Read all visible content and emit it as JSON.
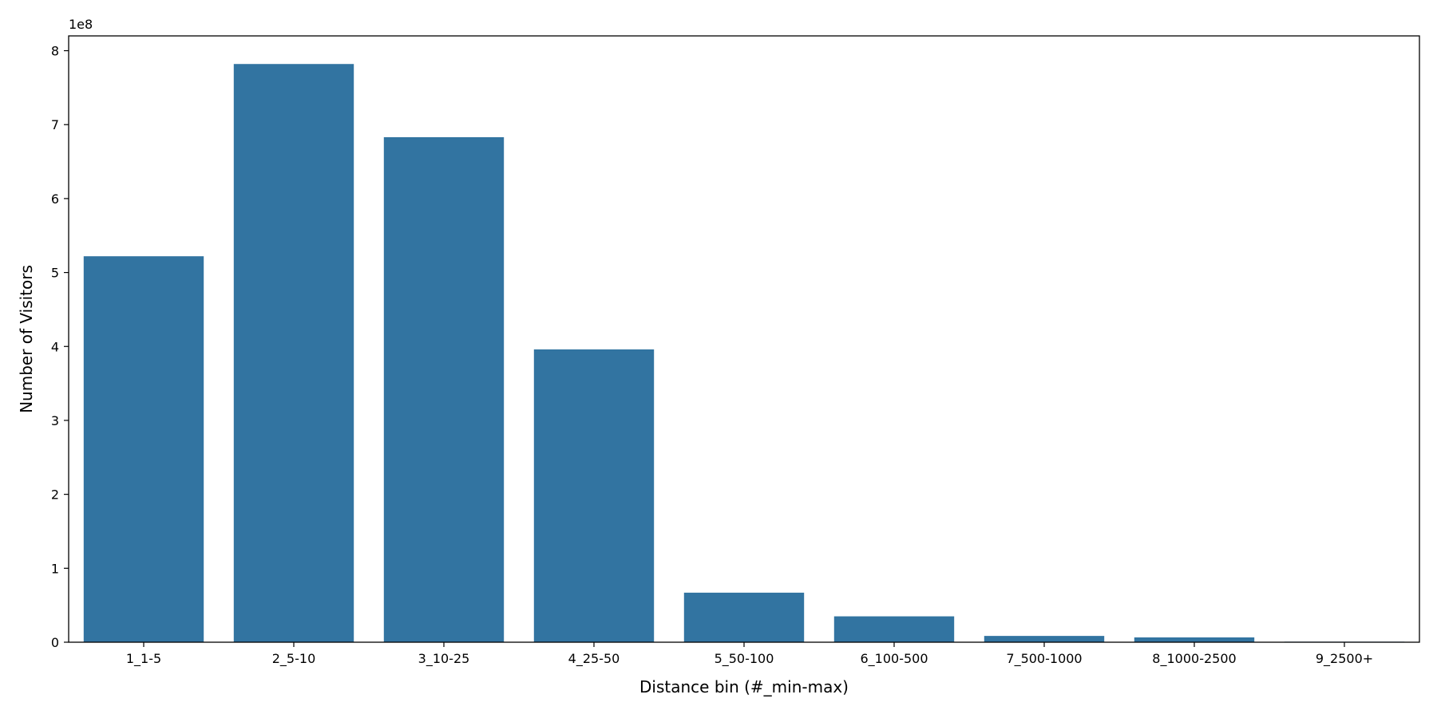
{
  "chart_data": {
    "type": "bar",
    "title": "",
    "xlabel": "Distance bin (#_min-max)",
    "ylabel": "Number of Visitors",
    "y_offset_label": "1e8",
    "y_scale": 100000000,
    "ylim": [
      0,
      820000000
    ],
    "yticks": [
      0,
      100000000,
      200000000,
      300000000,
      400000000,
      500000000,
      600000000,
      700000000,
      800000000
    ],
    "ytick_labels": [
      "0",
      "1",
      "2",
      "3",
      "4",
      "5",
      "6",
      "7",
      "8"
    ],
    "grid": false,
    "legend": "none",
    "bar_color": "#3274a1",
    "categories": [
      "1_1-5",
      "2_5-10",
      "3_10-25",
      "4_25-50",
      "5_50-100",
      "6_100-500",
      "7_500-1000",
      "8_1000-2500",
      "9_2500+"
    ],
    "values": [
      522000000,
      782000000,
      683000000,
      396000000,
      67000000,
      35000000,
      8500000,
      6500000,
      700000
    ]
  }
}
